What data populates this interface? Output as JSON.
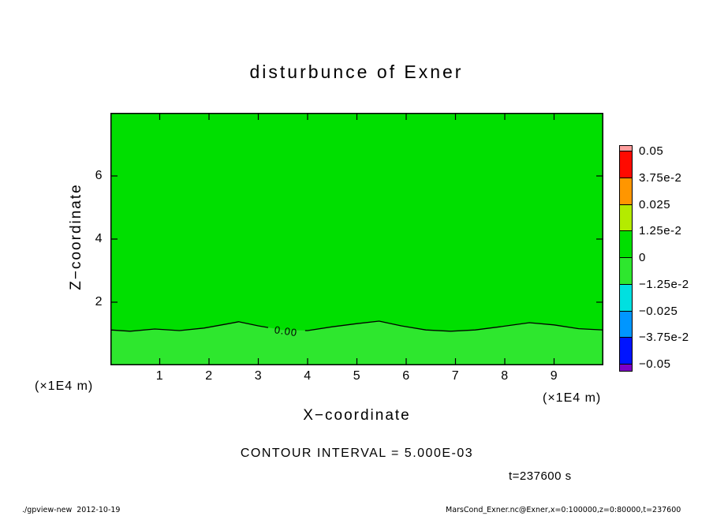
{
  "title": "disturbunce of Exner",
  "axes": {
    "x_label": "X−coordinate",
    "y_label": "Z−coordinate",
    "x_unit": "(×1E4 m)"
  },
  "texts": {
    "contour_interval": "CONTOUR INTERVAL = 5.000E-03",
    "time": "t=237600 s"
  },
  "footer": {
    "left": "./gpview-new  2012-10-19",
    "right": "MarsCond_Exner.nc@Exner,x=0:100000,z=0:80000,t=237600"
  },
  "colors": {
    "background": "#ffffff",
    "frame": "#000000",
    "fill_above": "#00df00",
    "fill_below": "#2ee72e"
  },
  "colorbar": {
    "labels": [
      "0.05",
      "3.75e-2",
      "0.025",
      "1.25e-2",
      "0",
      "−1.25e-2",
      "−0.025",
      "−3.75e-2",
      "−0.05"
    ],
    "colors": [
      "#ff9e9e",
      "#ff0a00",
      "#ff9600",
      "#b4eb00",
      "#00df00",
      "#2ee72e",
      "#00e0e0",
      "#0096ff",
      "#0014ff",
      "#7d00c8"
    ]
  },
  "chart_data": {
    "type": "heatmap",
    "title": "disturbunce of Exner",
    "xlabel": "X−coordinate (×1E4 m)",
    "ylabel": "Z−coordinate (×1E4 m)",
    "xlim": [
      0,
      10
    ],
    "ylim": [
      0,
      8
    ],
    "x_ticks": [
      1,
      2,
      3,
      4,
      5,
      6,
      7,
      8,
      9
    ],
    "y_ticks": [
      2,
      4,
      6
    ],
    "grid": false,
    "legend_position": "right-colorbar",
    "contour_interval": 0.005,
    "levels": [
      0.05,
      0.0375,
      0.025,
      0.0125,
      0,
      -0.0125,
      -0.025,
      -0.0375,
      -0.05
    ],
    "regions": [
      {
        "name": "above zero contour (most of domain)",
        "value_band": [
          0,
          0.0125
        ],
        "color": "#00df00"
      },
      {
        "name": "below zero contour (bottom strip, z < ~1.2e4 m)",
        "value_band": [
          -0.0125,
          0
        ],
        "color": "#2ee72e"
      }
    ],
    "zero_contour": {
      "label": "0.00",
      "label_x": 3.55,
      "label_z": 0.97,
      "label_angle": 8,
      "label_gap": [
        3.2,
        3.95
      ],
      "x": [
        0,
        0.4,
        0.9,
        1.4,
        1.9,
        2.4,
        2.6,
        3.0,
        3.5,
        4.0,
        4.5,
        5.0,
        5.45,
        5.9,
        6.4,
        6.9,
        7.4,
        7.9,
        8.5,
        9.0,
        9.5,
        10
      ],
      "z": [
        1.12,
        1.08,
        1.15,
        1.1,
        1.18,
        1.32,
        1.38,
        1.25,
        1.12,
        1.1,
        1.22,
        1.32,
        1.4,
        1.25,
        1.12,
        1.08,
        1.12,
        1.22,
        1.35,
        1.28,
        1.16,
        1.12
      ]
    },
    "time_s": 237600
  }
}
